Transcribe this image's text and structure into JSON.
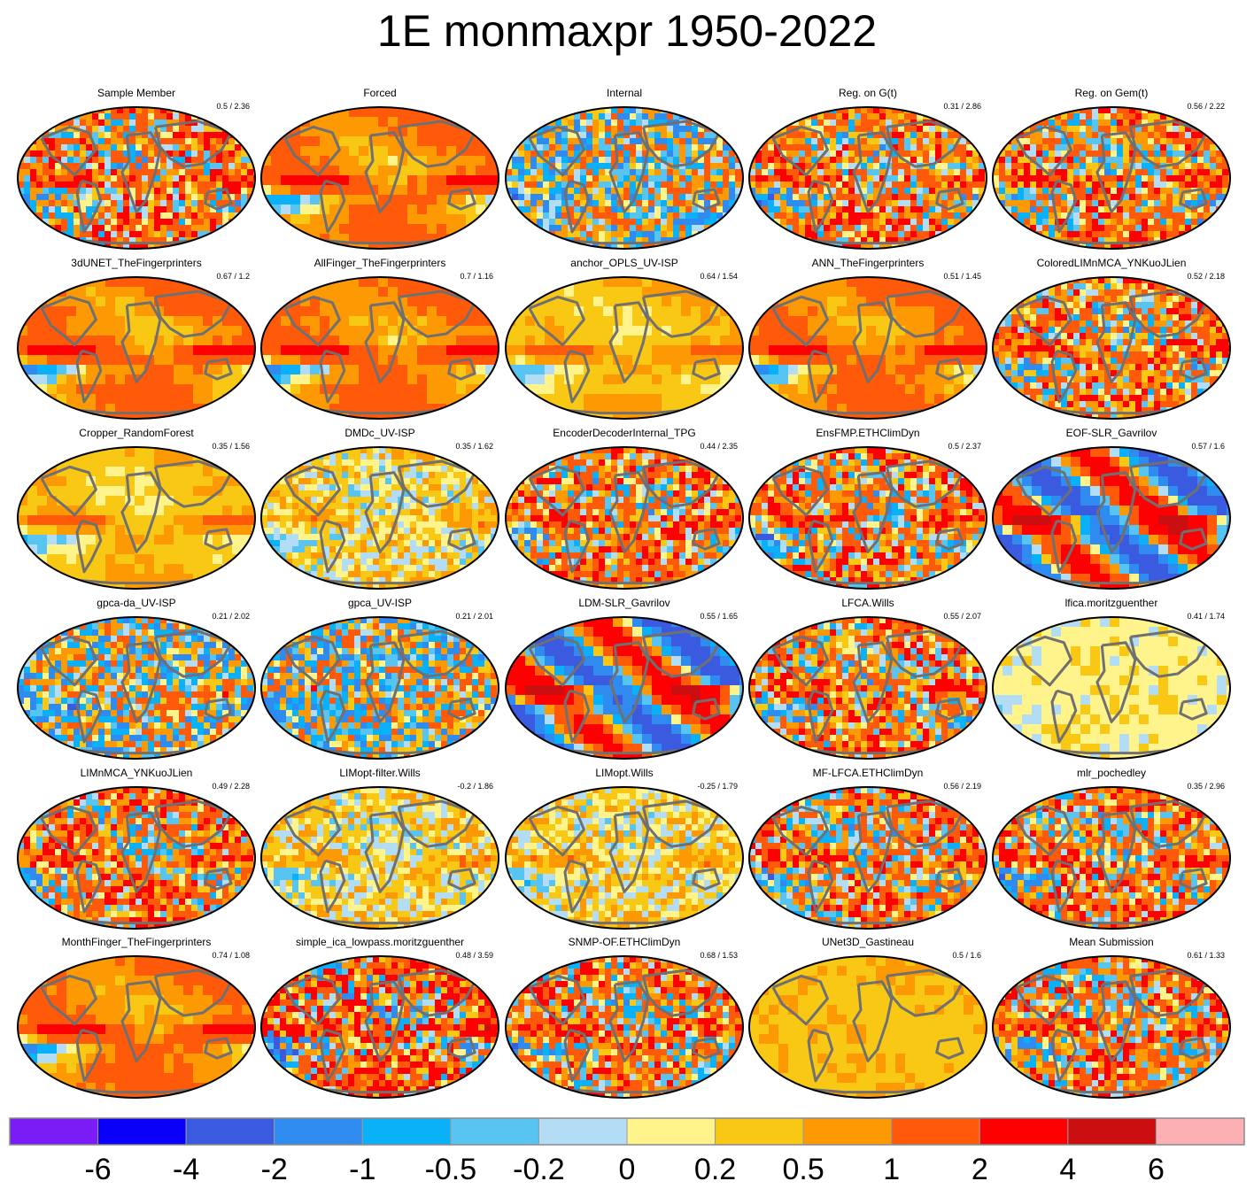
{
  "title": "1E monmaxpr 1950-2022",
  "colors": {
    "levels": [
      "#7b1cf7",
      "#0a00f8",
      "#3a5be0",
      "#2f8bf0",
      "#0ab0f8",
      "#58c4f2",
      "#b2ddf5",
      "#fff38c",
      "#f9c814",
      "#fd9a03",
      "#fe5a0a",
      "#fe0002",
      "#cb0e0f",
      "#fbb1b4"
    ],
    "continent": "#707070",
    "outline": "#000000"
  },
  "chart_data": {
    "type": "heatmap",
    "projection": "robinson",
    "colorbar": {
      "levels": [
        "-6",
        "-4",
        "-2",
        "-1",
        "-0.5",
        "-0.2",
        "0",
        "0.2",
        "0.5",
        "1",
        "2",
        "4",
        "6"
      ],
      "bins": 14
    },
    "panels": [
      {
        "title": "Sample Member",
        "stats": "0.5 / 2.36",
        "pattern": "noisy-warm"
      },
      {
        "title": "Forced",
        "stats": "",
        "pattern": "smooth-warm"
      },
      {
        "title": "Internal",
        "stats": "",
        "pattern": "noisy-mixed"
      },
      {
        "title": "Reg. on G(t)",
        "stats": "0.31 / 2.86",
        "pattern": "noisy-warm"
      },
      {
        "title": "Reg. on Gem(t)",
        "stats": "0.56 / 2.22",
        "pattern": "noisy-warm"
      },
      {
        "title": "3dUNET_TheFingerprinters",
        "stats": "0.67 / 1.2",
        "pattern": "smooth-warm"
      },
      {
        "title": "AllFinger_TheFingerprinters",
        "stats": "0.7 / 1.16",
        "pattern": "smooth-warm"
      },
      {
        "title": "anchor_OPLS_UV-ISP",
        "stats": "0.64 / 1.54",
        "pattern": "smooth-weak"
      },
      {
        "title": "ANN_TheFingerprinters",
        "stats": "0.51 / 1.45",
        "pattern": "smooth-warm"
      },
      {
        "title": "ColoredLIMnMCA_YNKuoJLien",
        "stats": "0.52 / 2.18",
        "pattern": "noisy-warm"
      },
      {
        "title": "Cropper_RandomForest",
        "stats": "0.35 / 1.56",
        "pattern": "smooth-weak"
      },
      {
        "title": "DMDc_UV-ISP",
        "stats": "0.35 / 1.62",
        "pattern": "noisy-weak"
      },
      {
        "title": "EncoderDecoderInternal_TPG",
        "stats": "0.44 / 2.35",
        "pattern": "noisy-warm"
      },
      {
        "title": "EnsFMP.ETHClimDyn",
        "stats": "0.5 / 2.37",
        "pattern": "noisy-warm"
      },
      {
        "title": "EOF-SLR_Gavrilov",
        "stats": "0.57 / 1.6",
        "pattern": "smooth-strong"
      },
      {
        "title": "gpca-da_UV-ISP",
        "stats": "0.21 / 2.02",
        "pattern": "noisy-mixed"
      },
      {
        "title": "gpca_UV-ISP",
        "stats": "0.21 / 2.01",
        "pattern": "noisy-mixed"
      },
      {
        "title": "LDM-SLR_Gavrilov",
        "stats": "0.55 / 1.65",
        "pattern": "smooth-strong"
      },
      {
        "title": "LFCA.Wills",
        "stats": "0.55 / 2.07",
        "pattern": "noisy-warm"
      },
      {
        "title": "lfica.moritzguenther",
        "stats": "0.41 / 1.74",
        "pattern": "flat-weak"
      },
      {
        "title": "LIMnMCA_YNKuoJLien",
        "stats": "0.49 / 2.28",
        "pattern": "noisy-warm"
      },
      {
        "title": "LIMopt-filter.Wills",
        "stats": "-0.2 / 1.86",
        "pattern": "noisy-weak"
      },
      {
        "title": "LIMopt.Wills",
        "stats": "-0.25 / 1.79",
        "pattern": "noisy-weak"
      },
      {
        "title": "MF-LFCA.ETHClimDyn",
        "stats": "0.56 / 2.19",
        "pattern": "noisy-warm"
      },
      {
        "title": "mlr_pochedley",
        "stats": "0.35 / 2.96",
        "pattern": "noisy-warm"
      },
      {
        "title": "MonthFinger_TheFingerprinters",
        "stats": "0.74 / 1.08",
        "pattern": "smooth-warm"
      },
      {
        "title": "simple_ica_lowpass.moritzguenther",
        "stats": "0.48 / 3.59",
        "pattern": "noisy-strong"
      },
      {
        "title": "SNMP-OF.ETHClimDyn",
        "stats": "0.68 / 1.53",
        "pattern": "noisy-warm"
      },
      {
        "title": "UNet3D_Gastineau",
        "stats": "0.5 / 1.6",
        "pattern": "flat-yellow"
      },
      {
        "title": "Mean Submission",
        "stats": "0.61 / 1.33",
        "pattern": "noisy-warm"
      }
    ]
  }
}
